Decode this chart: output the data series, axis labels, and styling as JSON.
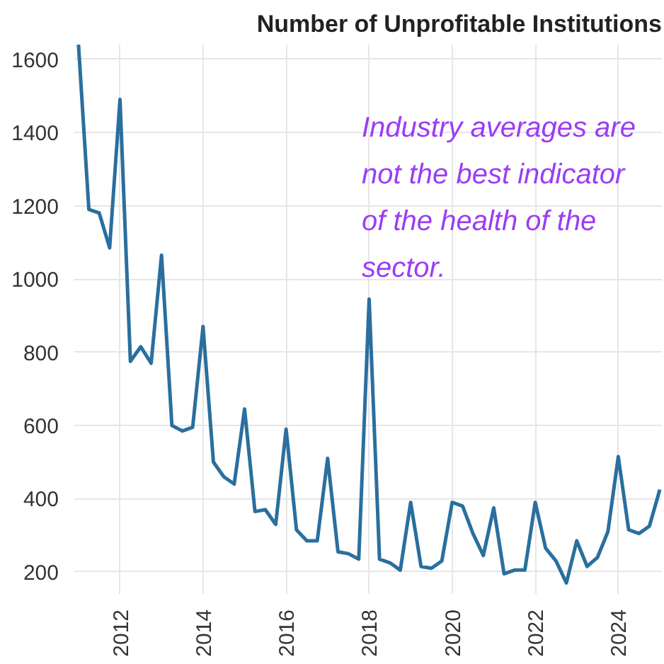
{
  "chart_data": {
    "type": "line",
    "title": "Number of Unprofitable Institutions",
    "annotations": [
      "Industry averages are not the best indicator of the health of the sector."
    ],
    "x": [
      2011.0,
      2011.25,
      2011.5,
      2011.75,
      2012.0,
      2012.25,
      2012.5,
      2012.75,
      2013.0,
      2013.25,
      2013.5,
      2013.75,
      2014.0,
      2014.25,
      2014.5,
      2014.75,
      2015.0,
      2015.25,
      2015.5,
      2015.75,
      2016.0,
      2016.25,
      2016.5,
      2016.75,
      2017.0,
      2017.25,
      2017.5,
      2017.75,
      2018.0,
      2018.25,
      2018.5,
      2018.75,
      2019.0,
      2019.25,
      2019.5,
      2019.75,
      2020.0,
      2020.25,
      2020.5,
      2020.75,
      2021.0,
      2021.25,
      2021.5,
      2021.75,
      2022.0,
      2022.25,
      2022.5,
      2022.75,
      2023.0,
      2023.25,
      2023.5,
      2023.75,
      2024.0,
      2024.25,
      2024.5,
      2024.75,
      2025.0
    ],
    "series": [
      {
        "color": "#2a6f9e",
        "values": [
          1640,
          1190,
          1180,
          1085,
          1490,
          775,
          815,
          770,
          1065,
          600,
          585,
          595,
          870,
          500,
          460,
          440,
          645,
          365,
          370,
          330,
          590,
          315,
          285,
          285,
          510,
          255,
          250,
          235,
          945,
          235,
          225,
          205,
          390,
          215,
          210,
          230,
          390,
          380,
          305,
          245,
          375,
          195,
          205,
          205,
          390,
          265,
          230,
          170,
          285,
          215,
          240,
          310,
          515,
          315,
          305,
          325,
          425
        ]
      }
    ],
    "xlim": [
      2010.9,
      2025.05
    ],
    "xticks": [
      2012,
      2014,
      2016,
      2018,
      2020,
      2022,
      2024
    ],
    "ylim": [
      140,
      1640
    ],
    "yticks": [
      200,
      400,
      600,
      800,
      1000,
      1200,
      1400,
      1600
    ],
    "grid": true,
    "marker": "none",
    "line_style": "solid"
  }
}
